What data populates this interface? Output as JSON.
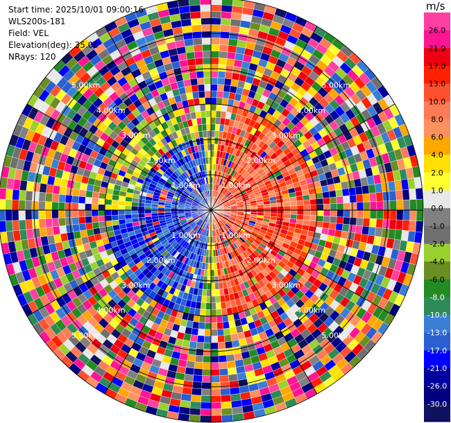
{
  "header": {
    "start_time": "Start time: 2025/10/01 09:00:16",
    "instrument": "WLS200s-181",
    "field": "Field: VEL",
    "elevation": "Elevation(deg): 35.00",
    "nrays": "NRays: 120"
  },
  "colorbar": {
    "unit": "m/s",
    "ticks": [
      "26.0",
      "21.0",
      "17.0",
      "13.0",
      "10.0",
      "8.0",
      "6.0",
      "4.0",
      "2.0",
      "1.0",
      "0.0",
      "-1.0",
      "-2.0",
      "-4.0",
      "-6.0",
      "-8.0",
      "-10.0",
      "-13.0",
      "-17.0",
      "-21.0",
      "-26.0",
      "-30.0"
    ],
    "colors": [
      "#ff40a0",
      "#ff1493",
      "#ee0010",
      "#ff2000",
      "#ff5030",
      "#ff7a55",
      "#ff9060",
      "#ffa800",
      "#ffe000",
      "#ffff30",
      "#e8e8e8",
      "#808080",
      "#707070",
      "#9ad030",
      "#6b8e23",
      "#228b22",
      "#2e8b57",
      "#3a7fd5",
      "#2a60d0",
      "#0000ff",
      "#0000a0",
      "#000080",
      "#101060"
    ]
  },
  "chart_data": {
    "type": "ppi",
    "field": "VEL",
    "units": "m/s",
    "elevation_deg": 35.0,
    "n_rays": 120,
    "max_range_km": 6.0,
    "range_ring_labels_km": [
      "1.00km",
      "2.00km",
      "3.00km",
      "4.00km",
      "5.00km"
    ],
    "vmin": -30.0,
    "vmax": 26.0,
    "pattern": "positive radial velocity (red/orange) on east half, negative (blue/green) on west half near center; noisy multicolor far range"
  }
}
